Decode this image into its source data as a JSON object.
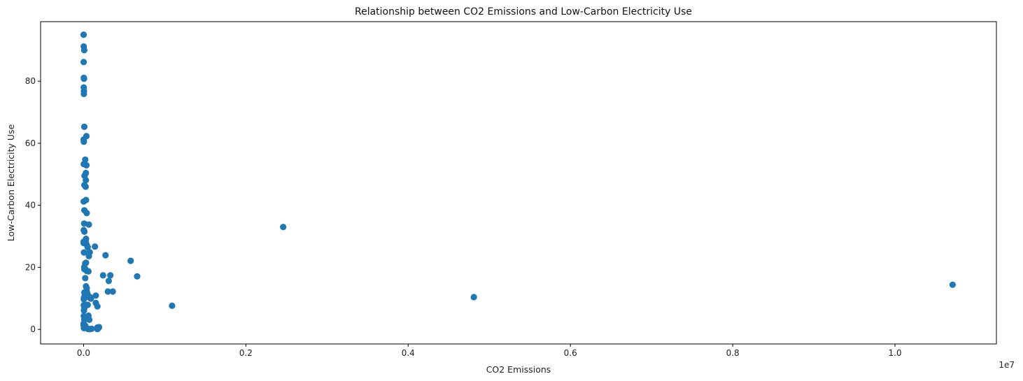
{
  "chart_data": {
    "type": "scatter",
    "title": "Relationship between CO2 Emissions and Low-Carbon Electricity Use",
    "xlabel": "CO2 Emissions",
    "ylabel": "Low-Carbon Electricity Use",
    "x_offset_label": "1e7",
    "xlim": [
      -530000,
      11250000
    ],
    "ylim": [
      -4.7,
      99.2
    ],
    "xticks": [
      0,
      2000000,
      4000000,
      6000000,
      8000000,
      10000000
    ],
    "xtick_labels": [
      "0.0",
      "0.2",
      "0.4",
      "0.6",
      "0.8",
      "1.0"
    ],
    "yticks": [
      0,
      20,
      40,
      60,
      80
    ],
    "ytick_labels": [
      "0",
      "20",
      "40",
      "60",
      "80"
    ],
    "grid": false,
    "marker_color": "#1f77b4",
    "x": [
      0,
      2000,
      8000,
      1000,
      3000,
      5000,
      2000,
      5000,
      4000,
      9000,
      35000,
      1000,
      3000,
      20000,
      35000,
      28000,
      12000,
      25000,
      10000,
      2000,
      28000,
      1000,
      30000,
      38000,
      10000,
      7000,
      2000,
      10000,
      30000,
      65000,
      25000,
      3000,
      38000,
      50000,
      30000,
      20000,
      5000,
      75000,
      65000,
      25000,
      8000,
      40000,
      20000,
      60000,
      30000,
      38000,
      50000,
      45000,
      60000,
      70000,
      80000,
      90000,
      40000,
      15000,
      10000,
      5000,
      3000,
      2000,
      8000,
      5000,
      40000,
      50000,
      3000,
      60000,
      8000,
      70000,
      1000,
      150000,
      170000,
      150000,
      170000,
      190000,
      180000,
      170000,
      50000,
      60000,
      80000,
      100000,
      30000,
      20000,
      1000,
      2000,
      10000,
      4000,
      2000,
      10000,
      1000,
      140000,
      240000,
      270000,
      300000,
      310000,
      330000,
      360000,
      580000,
      660000,
      1090000,
      2460000,
      4810000,
      10710000
    ],
    "y": [
      95,
      91.2,
      90,
      86.2,
      81.1,
      80.8,
      78,
      76.8,
      75.9,
      65.3,
      62.3,
      61.2,
      60.5,
      54.7,
      52.9,
      50.4,
      49.5,
      46,
      46.5,
      53.3,
      48.1,
      41.2,
      41.7,
      37.5,
      38.4,
      34.1,
      32,
      31.5,
      29.2,
      33.8,
      28.3,
      27.9,
      27.3,
      26.5,
      21.5,
      21.3,
      24.8,
      24.9,
      23.6,
      19.3,
      20.1,
      18.8,
      16.5,
      18.7,
      13.9,
      13.3,
      11.3,
      10.8,
      10.7,
      10.3,
      10.4,
      9.9,
      12.2,
      11.3,
      11.9,
      10.2,
      9.7,
      7.8,
      6.8,
      6.1,
      7.9,
      7.9,
      4.3,
      4.4,
      3.2,
      3.1,
      1.4,
      8.5,
      7.4,
      10.9,
      0.6,
      0.7,
      0.3,
      0.1,
      0.2,
      0.1,
      0.1,
      0.2,
      0.6,
      1.2,
      1.9,
      1.1,
      0.8,
      0.4,
      28.3,
      19.4,
      27.8,
      26.7,
      17.4,
      23.9,
      12.2,
      15.6,
      17.4,
      12.2,
      22.1,
      17.1,
      7.6,
      33,
      10.4,
      14.4
    ]
  }
}
